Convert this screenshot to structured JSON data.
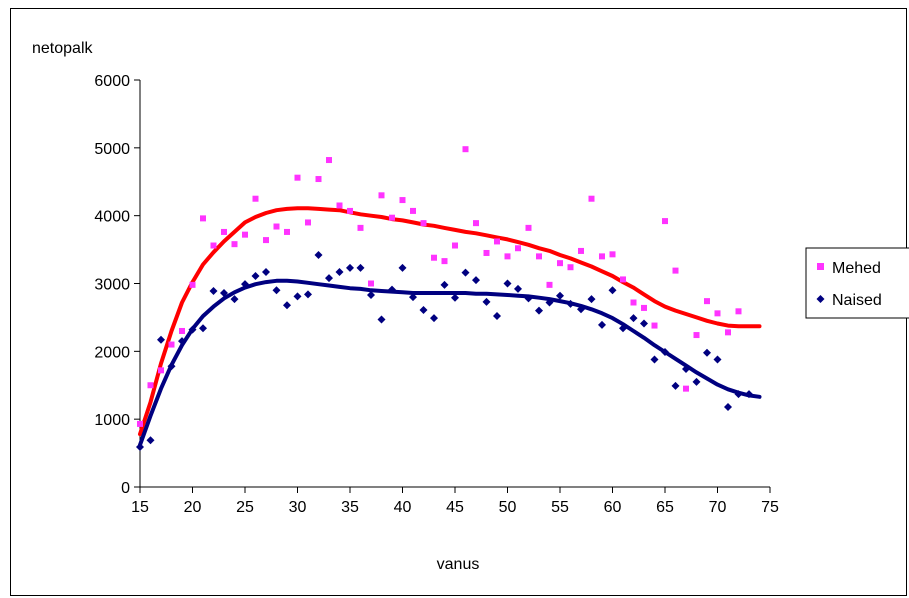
{
  "chart_data": {
    "type": "scatter",
    "title": "",
    "xlabel": "vanus",
    "ylabel": "netopalk",
    "xlim": [
      15,
      75
    ],
    "ylim": [
      0,
      6000
    ],
    "x_ticks": [
      15,
      20,
      25,
      30,
      35,
      40,
      45,
      50,
      55,
      60,
      65,
      70,
      75
    ],
    "y_ticks": [
      0,
      1000,
      2000,
      3000,
      4000,
      5000,
      6000
    ],
    "grid": false,
    "legend_position": "right",
    "series": [
      {
        "name": "Mehed",
        "color": "#ff33ff",
        "marker": "square",
        "points": [
          [
            15,
            930
          ],
          [
            16,
            1500
          ],
          [
            17,
            1720
          ],
          [
            18,
            2100
          ],
          [
            19,
            2300
          ],
          [
            20,
            2980
          ],
          [
            21,
            3960
          ],
          [
            22,
            3560
          ],
          [
            23,
            3760
          ],
          [
            24,
            3580
          ],
          [
            25,
            3720
          ],
          [
            26,
            4250
          ],
          [
            27,
            3640
          ],
          [
            28,
            3840
          ],
          [
            29,
            3760
          ],
          [
            30,
            4560
          ],
          [
            31,
            3900
          ],
          [
            32,
            4540
          ],
          [
            33,
            4820
          ],
          [
            34,
            4150
          ],
          [
            35,
            4070
          ],
          [
            36,
            3820
          ],
          [
            37,
            3000
          ],
          [
            38,
            4300
          ],
          [
            39,
            3970
          ],
          [
            40,
            4230
          ],
          [
            41,
            4070
          ],
          [
            42,
            3890
          ],
          [
            43,
            3380
          ],
          [
            44,
            3330
          ],
          [
            45,
            3560
          ],
          [
            46,
            4980
          ],
          [
            47,
            3890
          ],
          [
            48,
            3450
          ],
          [
            49,
            3620
          ],
          [
            50,
            3400
          ],
          [
            51,
            3520
          ],
          [
            52,
            3820
          ],
          [
            53,
            3400
          ],
          [
            54,
            2980
          ],
          [
            55,
            3300
          ],
          [
            56,
            3240
          ],
          [
            57,
            3480
          ],
          [
            58,
            4250
          ],
          [
            59,
            3400
          ],
          [
            60,
            3430
          ],
          [
            61,
            3060
          ],
          [
            62,
            2720
          ],
          [
            63,
            2640
          ],
          [
            64,
            2380
          ],
          [
            65,
            3920
          ],
          [
            66,
            3190
          ],
          [
            67,
            1450
          ],
          [
            68,
            2240
          ],
          [
            69,
            2740
          ],
          [
            70,
            2560
          ],
          [
            71,
            2280
          ],
          [
            72,
            2590
          ]
        ],
        "trend": [
          [
            15,
            780
          ],
          [
            16,
            1250
          ],
          [
            17,
            1820
          ],
          [
            18,
            2300
          ],
          [
            19,
            2720
          ],
          [
            20,
            3020
          ],
          [
            21,
            3280
          ],
          [
            22,
            3460
          ],
          [
            23,
            3620
          ],
          [
            24,
            3760
          ],
          [
            25,
            3900
          ],
          [
            26,
            3980
          ],
          [
            27,
            4040
          ],
          [
            28,
            4080
          ],
          [
            29,
            4100
          ],
          [
            30,
            4110
          ],
          [
            31,
            4110
          ],
          [
            32,
            4100
          ],
          [
            33,
            4090
          ],
          [
            34,
            4080
          ],
          [
            35,
            4050
          ],
          [
            36,
            4020
          ],
          [
            37,
            4000
          ],
          [
            38,
            3980
          ],
          [
            39,
            3950
          ],
          [
            40,
            3930
          ],
          [
            41,
            3900
          ],
          [
            42,
            3870
          ],
          [
            43,
            3850
          ],
          [
            44,
            3820
          ],
          [
            45,
            3790
          ],
          [
            46,
            3760
          ],
          [
            47,
            3740
          ],
          [
            48,
            3710
          ],
          [
            49,
            3680
          ],
          [
            50,
            3650
          ],
          [
            51,
            3610
          ],
          [
            52,
            3570
          ],
          [
            53,
            3520
          ],
          [
            54,
            3480
          ],
          [
            55,
            3420
          ],
          [
            56,
            3370
          ],
          [
            57,
            3310
          ],
          [
            58,
            3250
          ],
          [
            59,
            3180
          ],
          [
            60,
            3110
          ],
          [
            61,
            3020
          ],
          [
            62,
            2940
          ],
          [
            63,
            2840
          ],
          [
            64,
            2740
          ],
          [
            65,
            2660
          ],
          [
            66,
            2600
          ],
          [
            67,
            2550
          ],
          [
            68,
            2500
          ],
          [
            69,
            2450
          ],
          [
            70,
            2410
          ],
          [
            71,
            2380
          ],
          [
            72,
            2370
          ],
          [
            73,
            2370
          ],
          [
            74,
            2370
          ]
        ]
      },
      {
        "name": "Naised",
        "color": "#000080",
        "marker": "diamond",
        "points": [
          [
            15,
            590
          ],
          [
            16,
            690
          ],
          [
            17,
            2170
          ],
          [
            18,
            1780
          ],
          [
            19,
            2150
          ],
          [
            20,
            2320
          ],
          [
            21,
            2340
          ],
          [
            22,
            2890
          ],
          [
            23,
            2860
          ],
          [
            24,
            2770
          ],
          [
            25,
            2990
          ],
          [
            26,
            3110
          ],
          [
            27,
            3170
          ],
          [
            28,
            2900
          ],
          [
            29,
            2680
          ],
          [
            30,
            2810
          ],
          [
            31,
            2840
          ],
          [
            32,
            3420
          ],
          [
            33,
            3080
          ],
          [
            34,
            3170
          ],
          [
            35,
            3230
          ],
          [
            36,
            3230
          ],
          [
            37,
            2830
          ],
          [
            38,
            2470
          ],
          [
            39,
            2910
          ],
          [
            40,
            3230
          ],
          [
            41,
            2800
          ],
          [
            42,
            2610
          ],
          [
            43,
            2490
          ],
          [
            44,
            2980
          ],
          [
            45,
            2790
          ],
          [
            46,
            3160
          ],
          [
            47,
            3050
          ],
          [
            48,
            2730
          ],
          [
            49,
            2520
          ],
          [
            50,
            3000
          ],
          [
            51,
            2920
          ],
          [
            52,
            2780
          ],
          [
            53,
            2600
          ],
          [
            54,
            2720
          ],
          [
            55,
            2820
          ],
          [
            56,
            2700
          ],
          [
            57,
            2620
          ],
          [
            58,
            2770
          ],
          [
            59,
            2390
          ],
          [
            60,
            2900
          ],
          [
            61,
            2340
          ],
          [
            62,
            2490
          ],
          [
            63,
            2410
          ],
          [
            64,
            1880
          ],
          [
            65,
            1990
          ],
          [
            66,
            1490
          ],
          [
            67,
            1740
          ],
          [
            68,
            1550
          ],
          [
            69,
            1980
          ],
          [
            70,
            1880
          ],
          [
            71,
            1180
          ],
          [
            72,
            1370
          ],
          [
            73,
            1370
          ]
        ],
        "trend": [
          [
            15,
            620
          ],
          [
            16,
            1050
          ],
          [
            17,
            1450
          ],
          [
            18,
            1800
          ],
          [
            19,
            2090
          ],
          [
            20,
            2330
          ],
          [
            21,
            2520
          ],
          [
            22,
            2660
          ],
          [
            23,
            2780
          ],
          [
            24,
            2870
          ],
          [
            25,
            2940
          ],
          [
            26,
            2990
          ],
          [
            27,
            3020
          ],
          [
            28,
            3040
          ],
          [
            29,
            3040
          ],
          [
            30,
            3030
          ],
          [
            31,
            3010
          ],
          [
            32,
            2990
          ],
          [
            33,
            2970
          ],
          [
            34,
            2950
          ],
          [
            35,
            2930
          ],
          [
            36,
            2920
          ],
          [
            37,
            2900
          ],
          [
            38,
            2890
          ],
          [
            39,
            2880
          ],
          [
            40,
            2870
          ],
          [
            41,
            2860
          ],
          [
            42,
            2860
          ],
          [
            43,
            2860
          ],
          [
            44,
            2860
          ],
          [
            45,
            2860
          ],
          [
            46,
            2860
          ],
          [
            47,
            2850
          ],
          [
            48,
            2850
          ],
          [
            49,
            2840
          ],
          [
            50,
            2830
          ],
          [
            51,
            2820
          ],
          [
            52,
            2810
          ],
          [
            53,
            2790
          ],
          [
            54,
            2770
          ],
          [
            55,
            2740
          ],
          [
            56,
            2710
          ],
          [
            57,
            2670
          ],
          [
            58,
            2620
          ],
          [
            59,
            2560
          ],
          [
            60,
            2490
          ],
          [
            61,
            2400
          ],
          [
            62,
            2300
          ],
          [
            63,
            2200
          ],
          [
            64,
            2090
          ],
          [
            65,
            1990
          ],
          [
            66,
            1890
          ],
          [
            67,
            1790
          ],
          [
            68,
            1690
          ],
          [
            69,
            1600
          ],
          [
            70,
            1510
          ],
          [
            71,
            1440
          ],
          [
            72,
            1390
          ],
          [
            73,
            1350
          ],
          [
            74,
            1330
          ]
        ]
      }
    ]
  }
}
